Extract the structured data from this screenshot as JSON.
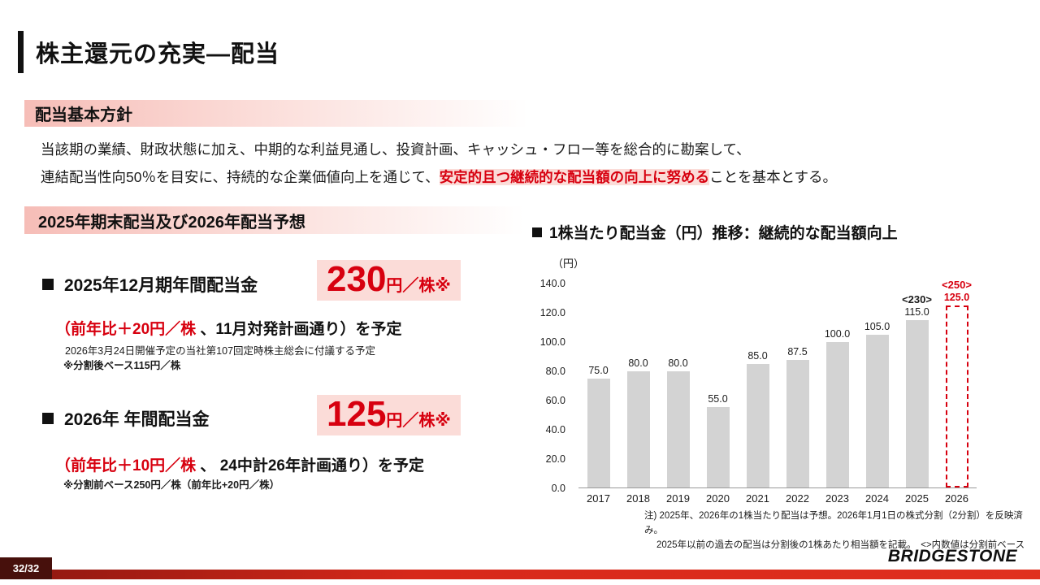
{
  "slide": {
    "title": "株主還元の充実―配当",
    "page_number": "32/32",
    "logo": "BRIDGESTONE"
  },
  "policy": {
    "header": "配当基本方針",
    "line1": "当該期の業績、財政状態に加え、中期的な利益見通し、投資計画、キャッシュ・フロー等を総合的に勘案して、",
    "line2_pre": "連結配当性向50％を目安に、持続的な企業価値向上を通じて、",
    "line2_highlight": "安定的且つ継続的な配当額の向上に努める",
    "line2_post": "ことを基本とする。"
  },
  "dividend_section": {
    "header": "2025年期末配当及び2026年配当予想",
    "item1": {
      "label": "2025年12月期年間配当金",
      "amount": "230",
      "amount_suffix": "円／株※",
      "detail_red": "（前年比＋20円／株 ",
      "detail_black": "、11月対発計画通り）を予定",
      "note1": "2026年3月24日開催予定の当社第107回定時株主総会に付議する予定",
      "note2": "※分割後ベース115円／株"
    },
    "item2": {
      "label": "2026年 年間配当金",
      "amount": "125",
      "amount_suffix": "円／株※",
      "detail_red": "（前年比＋10円／株 ",
      "detail_black": "、 24中計26年計画通り）を予定",
      "note1": "※分割前ベース250円／株（前年比+20円／株）"
    }
  },
  "chart_data": {
    "type": "bar",
    "title": "1株当たり配当金（円）推移：継続的な配当額向上",
    "y_unit": "（円）",
    "categories": [
      "2017",
      "2018",
      "2019",
      "2020",
      "2021",
      "2022",
      "2023",
      "2024",
      "2025",
      "2026"
    ],
    "values": [
      75.0,
      80.0,
      80.0,
      55.0,
      85.0,
      87.5,
      100.0,
      105.0,
      115.0,
      125.0
    ],
    "value_labels": [
      "75.0",
      "80.0",
      "80.0",
      "55.0",
      "85.0",
      "87.5",
      "100.0",
      "105.0",
      "115.0",
      "125.0"
    ],
    "pre_split_annotations": {
      "2025": "<230>",
      "2026": "<250>"
    },
    "forecast_category": "2026",
    "ylim": [
      0,
      140
    ],
    "ytick_step": 20,
    "yticks": [
      "0.0",
      "20.0",
      "40.0",
      "60.0",
      "80.0",
      "100.0",
      "120.0",
      "140.0"
    ],
    "grid": false,
    "legend": "none",
    "bar_color": "#d3d3d3",
    "forecast_style": "dashed-red-outline"
  },
  "chart_notes": {
    "line1": "注) 2025年、2026年の1株当たり配当は予想。2026年1月1日の株式分割（2分割）を反映済み。",
    "line2": "2025年以前の過去の配当は分割後の1株あたり相当額を記載。　<>内数値は分割前ベース"
  },
  "colors": {
    "accent_red": "#d7000f",
    "highlight_pink": "#fbdcd8",
    "header_gradient_start": "#f6bdb7",
    "bar_gray": "#d3d3d3",
    "footer_red": "#d7281a",
    "page_box_maroon": "#47100c"
  }
}
